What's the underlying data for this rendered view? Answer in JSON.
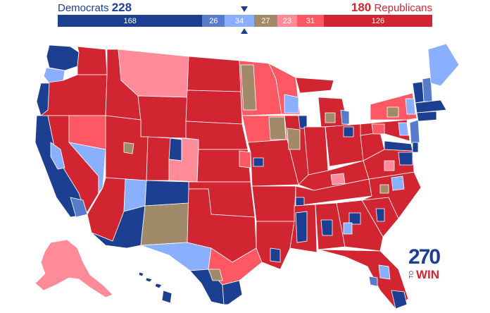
{
  "header": {
    "dem_label": "Democrats",
    "dem_total": "228",
    "rep_total": "180",
    "rep_label": "Republicans"
  },
  "bar_segments": [
    {
      "label": "168",
      "seats": 168,
      "category": "safe-dem",
      "color": "#1c3f91"
    },
    {
      "label": "26",
      "seats": 26,
      "category": "likely-dem",
      "color": "#577ccc"
    },
    {
      "label": "34",
      "seats": 34,
      "category": "lean-dem",
      "color": "#8aafff"
    },
    {
      "label": "27",
      "seats": 27,
      "category": "tossup",
      "color": "#a08a6a"
    },
    {
      "label": "23",
      "seats": 23,
      "category": "lean-rep",
      "color": "#ff8b98"
    },
    {
      "label": "31",
      "seats": 31,
      "category": "likely-rep",
      "color": "#ff5865"
    },
    {
      "label": "126",
      "seats": 126,
      "category": "safe-rep",
      "color": "#d22532"
    }
  ],
  "colors": {
    "safe_dem": "#1c3f91",
    "likely_dem": "#577ccc",
    "lean_dem": "#8aafff",
    "tossup": "#a08a6a",
    "lean_rep": "#ff8b98",
    "likely_rep": "#ff5865",
    "safe_rep": "#d22532",
    "border": "#ffffff"
  },
  "logo": {
    "number": "270",
    "to": "TO",
    "win": "WIN"
  }
}
